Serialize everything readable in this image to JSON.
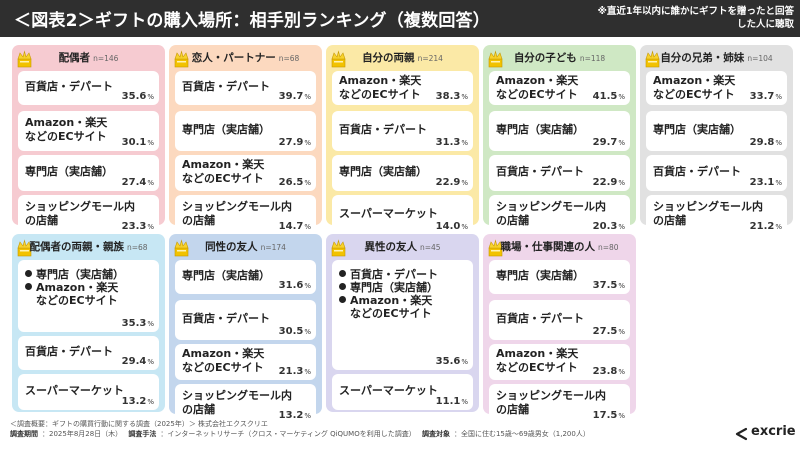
{
  "header": {
    "title": "＜図表2＞ギフトの購入場所：相手別ランキング（複数回答）",
    "note": "※直近1年以内に誰かにギフトを贈ったと回答した人に聴取"
  },
  "colors": {
    "header_bg": "#2f2f2f",
    "red": "#f6cbd1",
    "orange": "#fcd9bf",
    "yellow": "#fbe9a6",
    "green": "#cfe8c4",
    "gray": "#e1e1e1",
    "lightblue": "#c7e7f4",
    "blue": "#c3d6ed",
    "purple": "#d9d6ef",
    "pink": "#efd6ea"
  },
  "chart_data": {
    "type": "table",
    "unit": "%",
    "panels": [
      {
        "title": "配偶者",
        "n": "n=146",
        "color": "red",
        "items": [
          {
            "label": "百貨店・デパート",
            "value": "35.6"
          },
          {
            "label": "Amazon・楽天\nなどのECサイト",
            "value": "30.1"
          },
          {
            "label": "専門店（実店舗）",
            "value": "27.4"
          },
          {
            "label": "ショッピングモール内\nの店舗",
            "value": "23.3"
          }
        ]
      },
      {
        "title": "恋人・パートナー",
        "n": "n=68",
        "color": "orange",
        "items": [
          {
            "label": "百貨店・デパート",
            "value": "39.7"
          },
          {
            "label": "専門店（実店舗）",
            "value": "27.9"
          },
          {
            "label": "Amazon・楽天\nなどのECサイト",
            "value": "26.5"
          },
          {
            "label": "ショッピングモール内\nの店舗",
            "value": "14.7"
          }
        ]
      },
      {
        "title": "自分の両親",
        "n": "n=214",
        "color": "yellow",
        "items": [
          {
            "label": "Amazon・楽天\nなどのECサイト",
            "value": "38.3"
          },
          {
            "label": "百貨店・デパート",
            "value": "31.3"
          },
          {
            "label": "専門店（実店舗）",
            "value": "22.9"
          },
          {
            "label": "スーパーマーケット",
            "value": "14.0"
          }
        ]
      },
      {
        "title": "自分の子ども",
        "n": "n=118",
        "color": "green",
        "items": [
          {
            "label": "Amazon・楽天\nなどのECサイト",
            "value": "41.5"
          },
          {
            "label": "専門店（実店舗）",
            "value": "29.7"
          },
          {
            "label": "百貨店・デパート",
            "value": "22.9"
          },
          {
            "label": "ショッピングモール内\nの店舗",
            "value": "20.3"
          }
        ]
      },
      {
        "title": "自分の兄弟・姉妹",
        "n": "n=104",
        "color": "gray",
        "items": [
          {
            "label": "Amazon・楽天\nなどのECサイト",
            "value": "33.7"
          },
          {
            "label": "専門店（実店舗）",
            "value": "29.8"
          },
          {
            "label": "百貨店・デパート",
            "value": "23.1"
          },
          {
            "label": "ショッピングモール内\nの店舗",
            "value": "21.2"
          }
        ]
      },
      {
        "title": "配偶者の両親・親族",
        "n": "n=68",
        "color": "lightblue",
        "items": [
          {
            "labels": [
              "専門店（実店舗）",
              "Amazon・楽天\nなどのECサイト"
            ],
            "value": "35.3"
          },
          {
            "label": "百貨店・デパート",
            "value": "29.4"
          },
          {
            "label": "スーパーマーケット",
            "value": "13.2"
          }
        ]
      },
      {
        "title": "同性の友人",
        "n": "n=174",
        "color": "blue",
        "items": [
          {
            "label": "専門店（実店舗）",
            "value": "31.6"
          },
          {
            "label": "百貨店・デパート",
            "value": "30.5"
          },
          {
            "label": "Amazon・楽天\nなどのECサイト",
            "value": "21.3"
          },
          {
            "label": "ショッピングモール内\nの店舗",
            "value": "13.2"
          }
        ]
      },
      {
        "title": "異性の友人",
        "n": "n=45",
        "color": "purple",
        "items": [
          {
            "labels": [
              "百貨店・デパート",
              "専門店（実店舗）",
              "Amazon・楽天\nなどのECサイト"
            ],
            "value": "35.6"
          },
          {
            "label": "スーパーマーケット",
            "value": "11.1"
          }
        ]
      },
      {
        "title": "職場・仕事関連の人",
        "n": "n=80",
        "color": "pink",
        "items": [
          {
            "label": "専門店（実店舗）",
            "value": "37.5"
          },
          {
            "label": "百貨店・デパート",
            "value": "27.5"
          },
          {
            "label": "Amazon・楽天\nなどのECサイト",
            "value": "23.8"
          },
          {
            "label": "ショッピングモール内\nの店舗",
            "value": "17.5"
          }
        ]
      }
    ]
  },
  "footer": {
    "line1": "＜調査概要：ギフトの購買行動に関する調査（2025年）＞ 株式会社エクスクリエ",
    "date_key": "調査期間",
    "date_val": "：2025年8月28日（木）",
    "method_key": "調査手法",
    "method_val": "：インターネットリサーチ（クロス・マーケティング QiQUMOを利用した調査）",
    "target_key": "調査対象",
    "target_val": "：全国に住む15歳～69歳男女（1,200人）"
  },
  "logo": {
    "text": "excrie"
  }
}
